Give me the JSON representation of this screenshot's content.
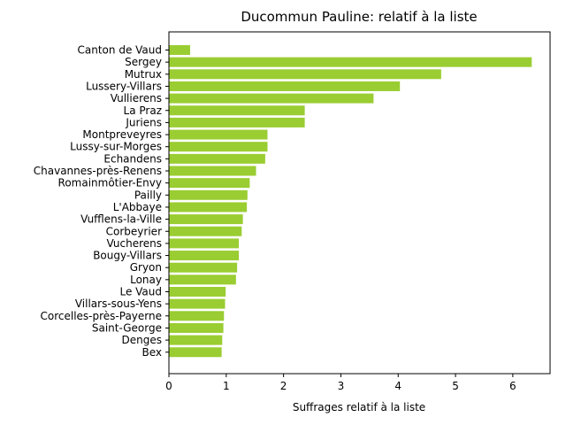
{
  "chart_data": {
    "type": "bar",
    "orientation": "horizontal",
    "title": "Ducommun Pauline: relatif à la liste",
    "xlabel": "Suffrages relatif à la liste",
    "ylabel": "",
    "xlim": [
      0,
      6.65
    ],
    "xticks": [
      0,
      1,
      2,
      3,
      4,
      5,
      6
    ],
    "grid": false,
    "bar_color": "#9acd32",
    "categories": [
      "Canton de Vaud",
      "Sergey",
      "Mutrux",
      "Lussery-Villars",
      "Vullierens",
      "La Praz",
      "Juriens",
      "Montpreveyres",
      "Lussy-sur-Morges",
      "Echandens",
      "Chavannes-près-Renens",
      "Romainmôtier-Envy",
      "Pailly",
      "L'Abbaye",
      "Vufflens-la-Ville",
      "Corbeyrier",
      "Vucherens",
      "Bougy-Villars",
      "Gryon",
      "Lonay",
      "Le Vaud",
      "Villars-sous-Yens",
      "Corcelles-près-Payerne",
      "Saint-George",
      "Denges",
      "Bex"
    ],
    "values": [
      0.37,
      6.33,
      4.75,
      4.03,
      3.57,
      2.37,
      2.37,
      1.72,
      1.72,
      1.68,
      1.52,
      1.41,
      1.37,
      1.36,
      1.29,
      1.27,
      1.22,
      1.22,
      1.19,
      1.17,
      0.99,
      0.98,
      0.96,
      0.95,
      0.93,
      0.92
    ]
  }
}
